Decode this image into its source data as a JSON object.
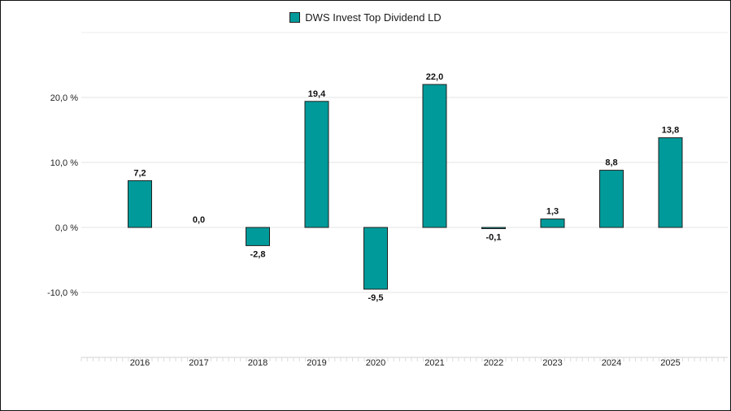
{
  "chart_data": {
    "type": "bar",
    "legend": {
      "placement": "top-center"
    },
    "series": [
      {
        "name": "DWS Invest Top Dividend LD",
        "color": "#009a9a",
        "values": [
          7.2,
          0.0,
          -2.8,
          19.4,
          -9.5,
          22.0,
          -0.1,
          1.3,
          8.8,
          13.8
        ],
        "value_labels": [
          "7,2",
          "0,0",
          "-2,8",
          "19,4",
          "-9,5",
          "22,0",
          "-0,1",
          "1,3",
          "8,8",
          "13,8"
        ]
      }
    ],
    "categories": [
      "2016",
      "2017",
      "2018",
      "2019",
      "2020",
      "2021",
      "2022",
      "2023",
      "2024",
      "2025"
    ],
    "y_ticks": [
      -10,
      0,
      10,
      20
    ],
    "y_tick_labels": [
      "-10,0 %",
      "0,0 %",
      "10,0 %",
      "20,0 %"
    ],
    "ylim": [
      -20,
      30
    ],
    "grid": true
  }
}
